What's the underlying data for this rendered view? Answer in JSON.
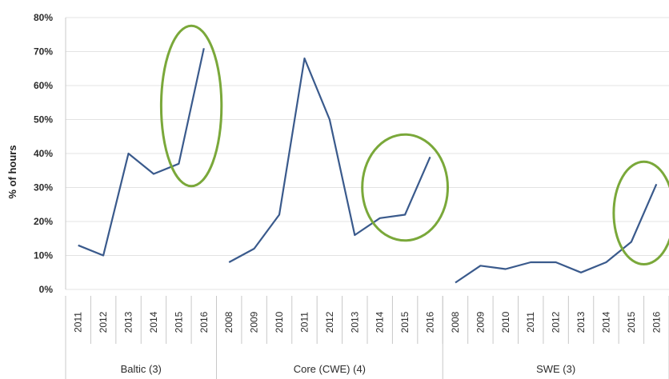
{
  "chart_data": {
    "type": "line",
    "ylabel": "% of hours",
    "ylim": [
      0,
      80
    ],
    "yticks": [
      "0%",
      "10%",
      "20%",
      "30%",
      "40%",
      "50%",
      "60%",
      "70%",
      "80%"
    ],
    "grid": true,
    "groups": [
      {
        "name": "Baltic (3)",
        "x": [
          "2011",
          "2012",
          "2013",
          "2014",
          "2015",
          "2016"
        ],
        "values": [
          13,
          10,
          40,
          34,
          37,
          71
        ],
        "highlight": {
          "from": "2015",
          "to": "2016"
        }
      },
      {
        "name": "Core (CWE) (4)",
        "x": [
          "2008",
          "2009",
          "2010",
          "2011",
          "2012",
          "2013",
          "2014",
          "2015",
          "2016"
        ],
        "values": [
          8,
          12,
          22,
          68,
          50,
          16,
          21,
          22,
          39
        ],
        "highlight": {
          "from": "2014",
          "to": "2016"
        }
      },
      {
        "name": "SWE (3)",
        "x": [
          "2008",
          "2009",
          "2010",
          "2011",
          "2012",
          "2013",
          "2014",
          "2015",
          "2016"
        ],
        "values": [
          2,
          7,
          6,
          8,
          8,
          5,
          8,
          14,
          31
        ],
        "highlight": {
          "from": "2015",
          "to": "2016"
        }
      }
    ],
    "colors": {
      "line": "#3a5a8c",
      "highlight": "#7aa83a"
    }
  }
}
